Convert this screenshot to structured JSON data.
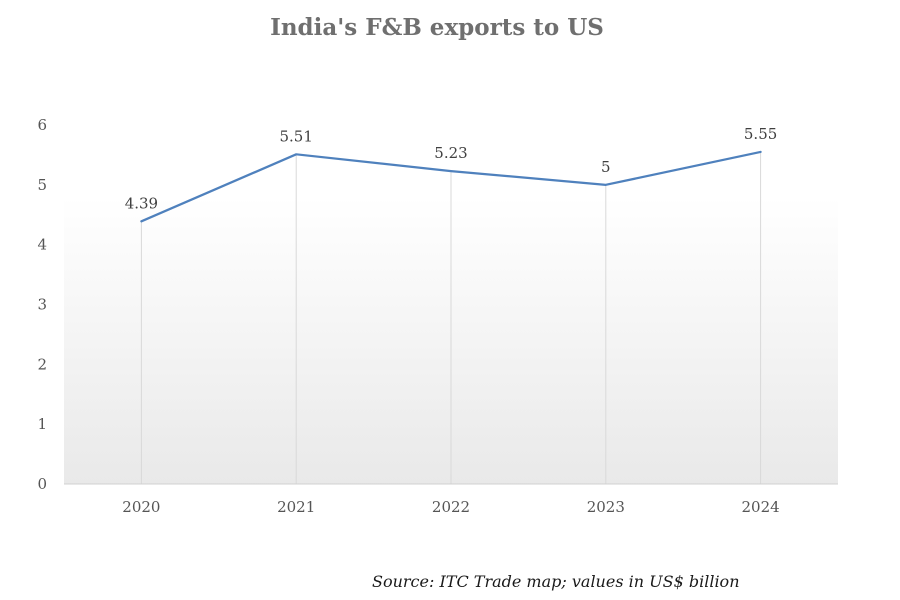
{
  "title": "India's F&B exports to US",
  "source_note": "Source: ITC Trade map; values in US$ billion",
  "colors": {
    "line": "#4f81bd",
    "title": "#6f6f6f",
    "gridline": "#d9d9d9"
  },
  "chart_data": {
    "type": "line",
    "title": "India's F&B exports to US",
    "xlabel": "",
    "ylabel": "",
    "categories": [
      "2020",
      "2021",
      "2022",
      "2023",
      "2024"
    ],
    "series": [
      {
        "values": [
          4.39,
          5.51,
          5.23,
          5,
          5.55
        ],
        "labels": [
          "4.39",
          "5.51",
          "5.23",
          "5",
          "5.55"
        ]
      }
    ],
    "ylim": [
      0,
      6
    ],
    "yticks": [
      "0",
      "1",
      "2",
      "3",
      "4",
      "5",
      "6"
    ],
    "grid": "vertical drop lines",
    "legend": "none",
    "plot_background": "light grey gradient"
  }
}
